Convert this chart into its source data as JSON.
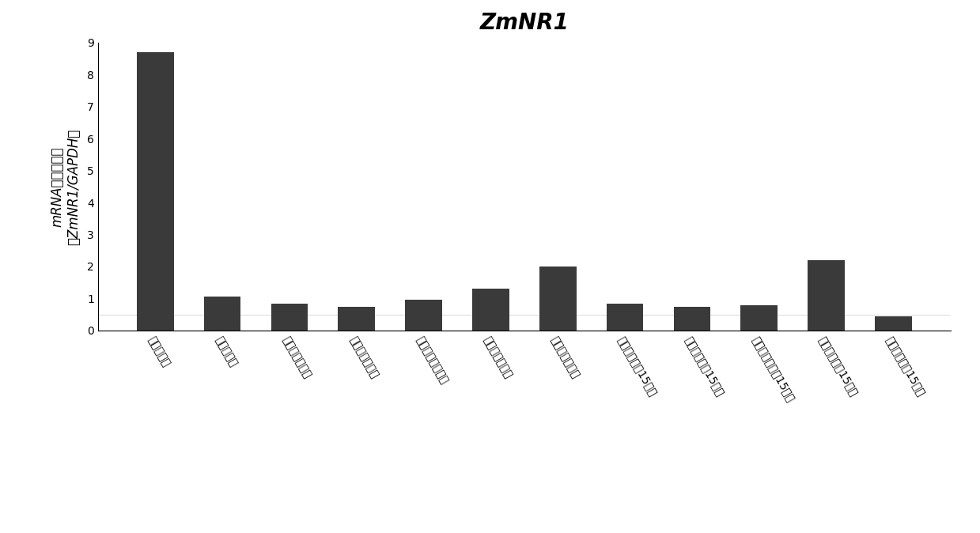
{
  "title": "ZmNR1",
  "ylabel_line1": "mRNA相对表达量",
  "ylabel_line2": "ZmNR1/GAPDH",
  "categories": [
    "根（苗期）",
    "叶（苗期）",
    "新叶（授粉前）",
    "老叶（授粉前）",
    "穗位叶（授粉前）",
    "雄穗（授粉前）",
    "雌穗（授粉前）",
    "新叶（授粉后15天）",
    "老叶（授粉后15天）",
    "穗位叶（授粉后15天）",
    "穗轴（授粉后15天）",
    "粒粒（授粉后15天）"
  ],
  "values": [
    8.7,
    1.05,
    0.85,
    0.75,
    0.95,
    1.3,
    2.0,
    0.85,
    0.75,
    0.8,
    2.2,
    0.45
  ],
  "bar_color": "#3a3a3a",
  "ylim": [
    0,
    9
  ],
  "yticks": [
    0,
    1,
    2,
    3,
    4,
    5,
    6,
    7,
    8,
    9
  ],
  "background_color": "#ffffff",
  "title_fontsize": 20,
  "ylabel_fontsize": 12,
  "tick_fontsize": 10,
  "xtick_fontsize": 10
}
